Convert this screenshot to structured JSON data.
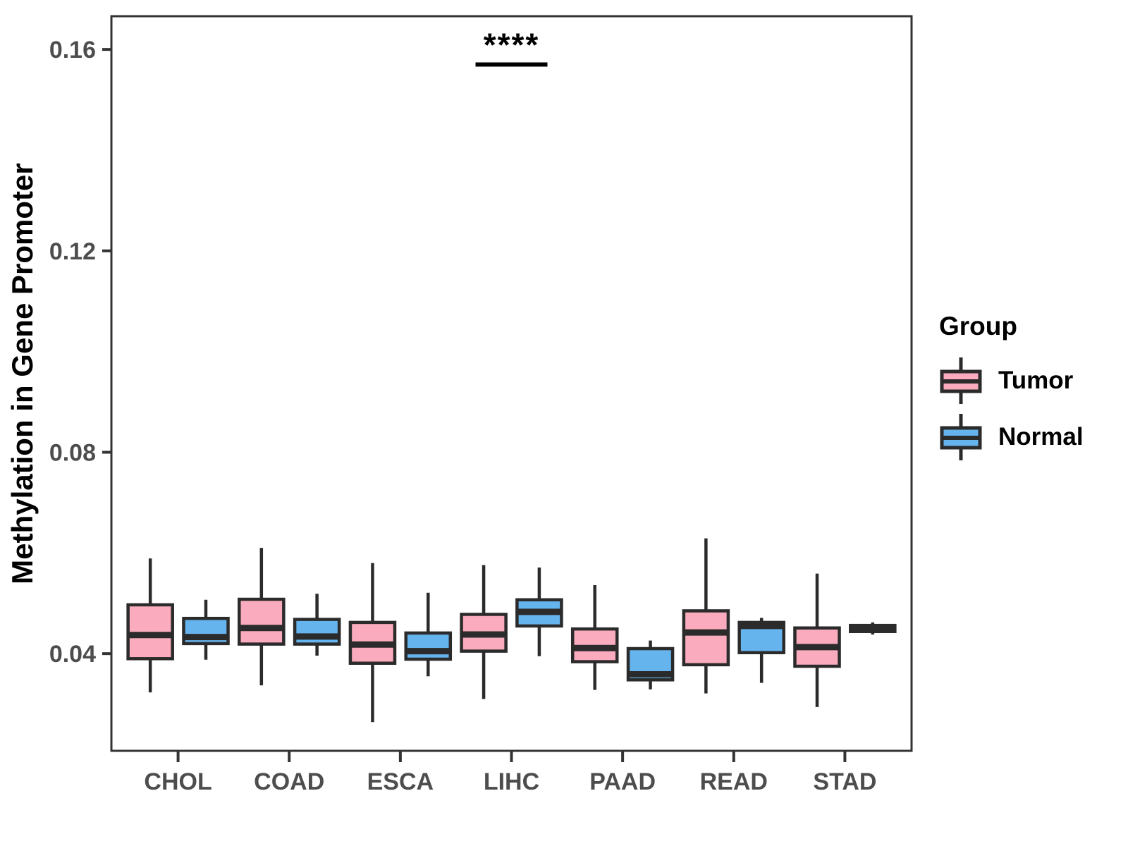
{
  "chart_data": {
    "type": "boxplot",
    "title": "",
    "ylabel": "Methylation in Gene Promoter",
    "xlabel": "",
    "legend_title": "Group",
    "legend_position": "right",
    "grid": false,
    "panel_border": true,
    "categories": [
      "CHOL",
      "COAD",
      "ESCA",
      "LIHC",
      "PAAD",
      "READ",
      "STAD"
    ],
    "yticks": [
      0.04,
      0.08,
      0.12,
      0.16
    ],
    "ylim": [
      0.0207,
      0.1666
    ],
    "groups": [
      {
        "name": "Tumor",
        "fill": "#FAACBE"
      },
      {
        "name": "Normal",
        "fill": "#66B4EE"
      }
    ],
    "colors": {
      "box_stroke": "#2B2B2B",
      "axis_line": "#333333",
      "axis_text": "#4D4D4D",
      "annotation": "#000000",
      "background": "#FFFFFF"
    },
    "series": [
      {
        "name": "Tumor",
        "boxes": [
          {
            "category": "CHOL",
            "whisker_low": 0.0323,
            "q1": 0.039,
            "median": 0.0437,
            "q3": 0.0497,
            "whisker_high": 0.0589
          },
          {
            "category": "COAD",
            "whisker_low": 0.0337,
            "q1": 0.0419,
            "median": 0.0451,
            "q3": 0.0508,
            "whisker_high": 0.061
          },
          {
            "category": "ESCA",
            "whisker_low": 0.0264,
            "q1": 0.0381,
            "median": 0.0418,
            "q3": 0.0462,
            "whisker_high": 0.058
          },
          {
            "category": "LIHC",
            "whisker_low": 0.031,
            "q1": 0.0405,
            "median": 0.0438,
            "q3": 0.0478,
            "whisker_high": 0.0576
          },
          {
            "category": "PAAD",
            "whisker_low": 0.0328,
            "q1": 0.0384,
            "median": 0.0411,
            "q3": 0.0449,
            "whisker_high": 0.0536
          },
          {
            "category": "READ",
            "whisker_low": 0.0321,
            "q1": 0.0378,
            "median": 0.0442,
            "q3": 0.0485,
            "whisker_high": 0.0629
          },
          {
            "category": "STAD",
            "whisker_low": 0.0294,
            "q1": 0.0375,
            "median": 0.0413,
            "q3": 0.0451,
            "whisker_high": 0.0559
          }
        ]
      },
      {
        "name": "Normal",
        "boxes": [
          {
            "category": "CHOL",
            "whisker_low": 0.0388,
            "q1": 0.042,
            "median": 0.0433,
            "q3": 0.047,
            "whisker_high": 0.0507
          },
          {
            "category": "COAD",
            "whisker_low": 0.0396,
            "q1": 0.0419,
            "median": 0.0434,
            "q3": 0.0468,
            "whisker_high": 0.0519
          },
          {
            "category": "ESCA",
            "whisker_low": 0.0355,
            "q1": 0.0389,
            "median": 0.0405,
            "q3": 0.0441,
            "whisker_high": 0.0521
          },
          {
            "category": "LIHC",
            "whisker_low": 0.0395,
            "q1": 0.0455,
            "median": 0.0483,
            "q3": 0.0507,
            "whisker_high": 0.0571
          },
          {
            "category": "PAAD",
            "whisker_low": 0.0329,
            "q1": 0.0348,
            "median": 0.0359,
            "q3": 0.041,
            "whisker_high": 0.0426
          },
          {
            "category": "READ",
            "whisker_low": 0.0342,
            "q1": 0.0402,
            "median": 0.0455,
            "q3": 0.0462,
            "whisker_high": 0.0471
          },
          {
            "category": "STAD",
            "whisker_low": 0.0438,
            "q1": 0.0444,
            "median": 0.045,
            "q3": 0.0456,
            "whisker_high": 0.0462
          }
        ]
      }
    ],
    "annotation": {
      "label": "****",
      "category": "LIHC",
      "bar_y": 0.157
    }
  }
}
